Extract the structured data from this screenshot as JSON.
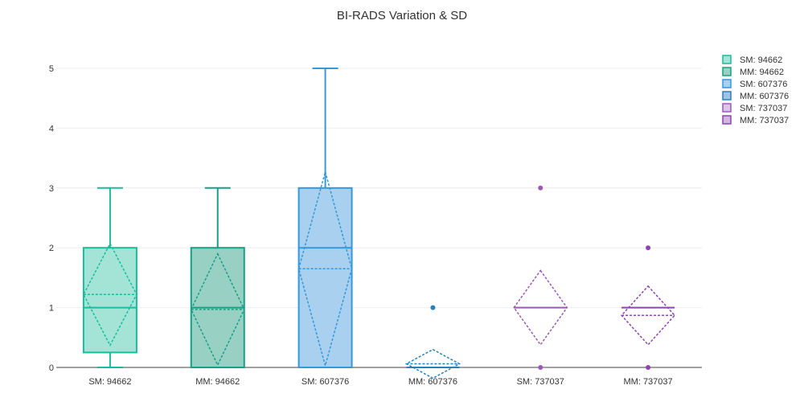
{
  "chart_data": {
    "type": "box",
    "title": "BI-RADS Variation & SD",
    "xlabel": "",
    "ylabel": "",
    "ylim": [
      0,
      5
    ],
    "yticks": [
      0,
      1,
      2,
      3,
      4,
      5
    ],
    "grid": true,
    "legend_placement": "top-right",
    "categories": [
      "SM: 94662",
      "MM: 94662",
      "SM: 607376",
      "MM: 607376",
      "SM: 737037",
      "MM: 737037"
    ],
    "series": [
      {
        "name": "SM: 94662",
        "color": "#1abc9c",
        "fill": "#a3e4d7",
        "q1": 0.25,
        "median": 1,
        "q3": 2,
        "lower_whisker": 0,
        "upper_whisker": 3,
        "mean": 1.22,
        "sd": 0.85,
        "outliers": []
      },
      {
        "name": "MM: 94662",
        "color": "#16a085",
        "fill": "#98d1c3",
        "q1": 0,
        "median": 1,
        "q3": 2,
        "lower_whisker": 0,
        "upper_whisker": 3,
        "mean": 0.97,
        "sd": 0.93,
        "outliers": []
      },
      {
        "name": "SM: 607376",
        "color": "#3498db",
        "fill": "#a9d0ef",
        "q1": 0,
        "median": 2,
        "q3": 3,
        "lower_whisker": 0,
        "upper_whisker": 5,
        "mean": 1.65,
        "sd": 1.62,
        "outliers": []
      },
      {
        "name": "MM: 607376",
        "color": "#2980b9",
        "fill": "#9dc3e6",
        "q1": 0,
        "median": 0,
        "q3": 0,
        "lower_whisker": 0,
        "upper_whisker": 0,
        "mean": 0.06,
        "sd": 0.24,
        "outliers": [
          1
        ]
      },
      {
        "name": "SM: 737037",
        "color": "#9b59b6",
        "fill": "#dcc6e8",
        "q1": 1,
        "median": 1,
        "q3": 1,
        "lower_whisker": 1,
        "upper_whisker": 1,
        "mean": 1.0,
        "sd": 0.62,
        "outliers": [
          0,
          3
        ]
      },
      {
        "name": "MM: 737037",
        "color": "#8e44ad",
        "fill": "#d2b4e0",
        "q1": 1,
        "median": 1,
        "q3": 1,
        "lower_whisker": 1,
        "upper_whisker": 1,
        "mean": 0.87,
        "sd": 0.49,
        "outliers": [
          0,
          2
        ]
      }
    ]
  }
}
